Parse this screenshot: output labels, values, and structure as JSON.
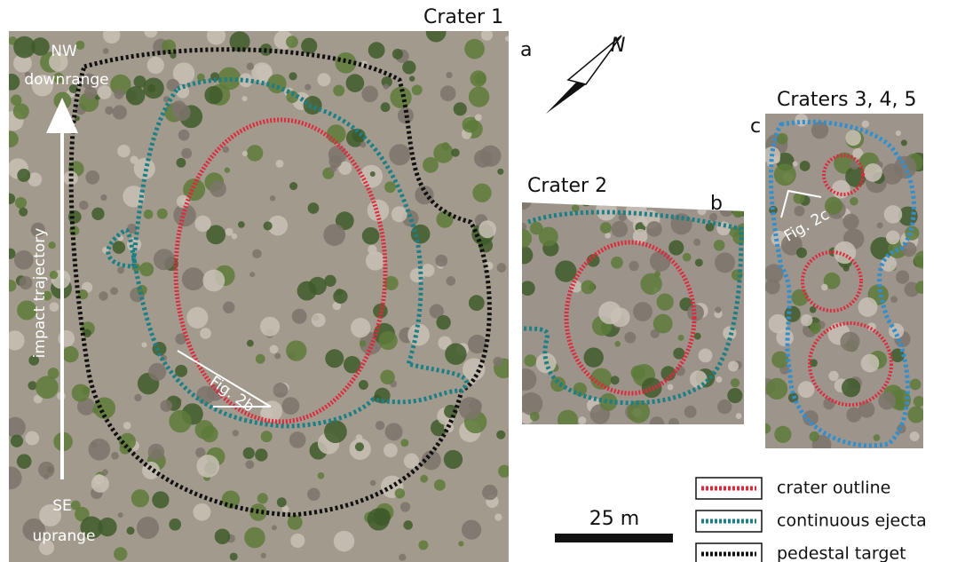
{
  "panel_a": {
    "title": "Crater 1",
    "letter": "a",
    "top_direction": "NW",
    "top_label": "downrange",
    "trajectory": "impact trajectory",
    "bottom_direction": "SE",
    "bottom_label": "uprange",
    "figure_ref": "Fig. 2b"
  },
  "panel_b": {
    "title": "Crater 2",
    "letter": "b"
  },
  "panel_c": {
    "title": "Craters 3, 4, 5",
    "letter": "c",
    "figure_ref": "Fig. 2c"
  },
  "north_arrow": {
    "label": "N"
  },
  "scale_bar": {
    "label": "25 m"
  },
  "legend": {
    "items": [
      "crater outline",
      "continuous ejecta",
      "pedestal target"
    ]
  }
}
